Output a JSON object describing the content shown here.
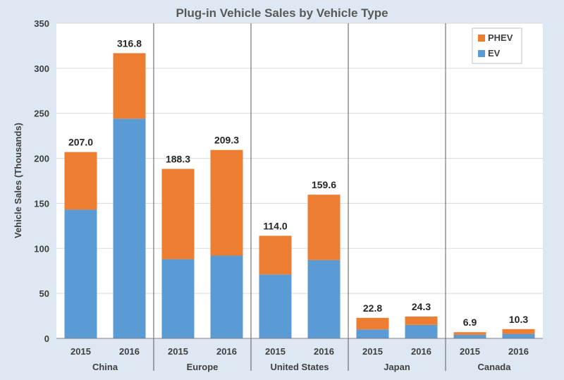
{
  "chart_data": {
    "type": "bar",
    "stacked": true,
    "title": "Plug-in Vehicle Sales by Vehicle Type",
    "xlabel": "",
    "ylabel": "Vehicle Sales (Thousands)",
    "ylim": [
      0,
      350
    ],
    "yticks": [
      0,
      50,
      100,
      150,
      200,
      250,
      300,
      350
    ],
    "grid": true,
    "legend_position": "top-right",
    "groups": [
      "China",
      "Europe",
      "United States",
      "Japan",
      "Canada"
    ],
    "categories": [
      "2015",
      "2016",
      "2015",
      "2016",
      "2015",
      "2016",
      "2015",
      "2016",
      "2015",
      "2016"
    ],
    "series": [
      {
        "name": "EV",
        "color": "#5b9bd5",
        "values": [
          143,
          244,
          88,
          92,
          71,
          87,
          10,
          15,
          4,
          5
        ]
      },
      {
        "name": "PHEV",
        "color": "#ed7d31",
        "values": [
          64,
          72.8,
          100.3,
          117.3,
          43,
          72.6,
          12.8,
          9.3,
          2.9,
          5.3
        ]
      }
    ],
    "totals": [
      "207.0",
      "316.8",
      "188.3",
      "209.3",
      "114.0",
      "159.6",
      "22.8",
      "24.3",
      "6.9",
      "10.3"
    ]
  }
}
